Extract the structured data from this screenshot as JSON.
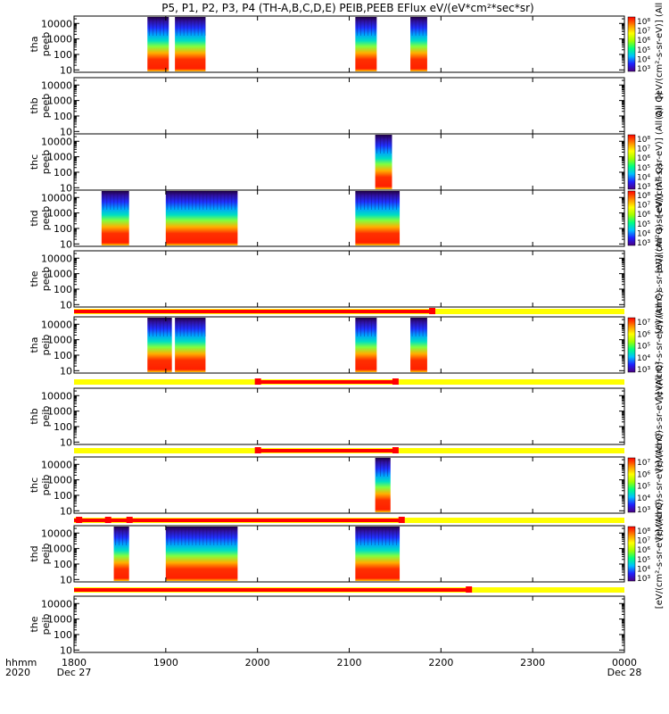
{
  "chart_data": {
    "type": "heatmap",
    "title": "P5, P1, P2, P3, P4 (TH-A,B,C,D,E) PEIB,PEEB EFlux eV/(eV*cm²*sec*sr)",
    "time_axis": {
      "row_label_1": "hhmm",
      "row_label_2": "2020",
      "ticks": [
        {
          "t": 0,
          "label": "1800",
          "sub": "Dec 27"
        },
        {
          "t": 60,
          "label": "1900",
          "sub": ""
        },
        {
          "t": 120,
          "label": "2000",
          "sub": ""
        },
        {
          "t": 180,
          "label": "2100",
          "sub": ""
        },
        {
          "t": 240,
          "label": "2200",
          "sub": ""
        },
        {
          "t": 300,
          "label": "2300",
          "sub": ""
        },
        {
          "t": 360,
          "label": "0000",
          "sub": "Dec 28"
        }
      ],
      "range_minutes": [
        0,
        360
      ]
    },
    "energy_axis": {
      "scale": "log",
      "range_eV": [
        7,
        30000
      ],
      "tick_labels": [
        "10",
        "100",
        "1000",
        "10000"
      ]
    },
    "colors": {
      "scale": [
        "#4b0082",
        "#2020ff",
        "#00c0ff",
        "#00ff80",
        "#a0ff00",
        "#ffff00",
        "#ff9000",
        "#ff0000"
      ],
      "bar_good": "#ffff00",
      "bar_flag": "#ff0000"
    },
    "panels": [
      {
        "id": "tha_peeb",
        "label1": "tha",
        "label2": "peeb",
        "segments": [
          [
            48,
            62
          ],
          [
            66,
            86
          ],
          [
            184,
            198
          ],
          [
            220,
            231
          ]
        ],
        "colorbar": {
          "labels": [
            "10⁸",
            "10⁷",
            "10⁶",
            "10⁵",
            "10⁴",
            "10³"
          ],
          "unit": "[eV/(cm²-s-sr-eV)] (All Q)"
        }
      },
      {
        "id": "thb_peeb",
        "label1": "thb",
        "label2": "peeb",
        "segments": [],
        "colorbar": {
          "labels": [],
          "unit": "(All Q)"
        }
      },
      {
        "id": "thc_peeb",
        "label1": "thc",
        "label2": "peeb",
        "segments": [
          [
            197,
            208
          ]
        ],
        "colorbar": {
          "labels": [
            "10⁸",
            "10⁷",
            "10⁶",
            "10⁵",
            "10⁴",
            "10³"
          ],
          "unit": "[eV/(cm²-s-sr-eV)] (All Q)"
        }
      },
      {
        "id": "thd_peeb",
        "label1": "thd",
        "label2": "peeb",
        "segments": [
          [
            18,
            36
          ],
          [
            60,
            107
          ],
          [
            184,
            213
          ]
        ],
        "colorbar": {
          "labels": [
            "10⁸",
            "10⁷",
            "10⁶",
            "10⁵",
            "10⁴",
            "10³"
          ],
          "unit": "[eV/(cm²-s-sr-eV)] (All Q)"
        }
      },
      {
        "id": "the_peeb",
        "label1": "the",
        "label2": "peeb",
        "segments": [],
        "colorbar": {
          "labels": [],
          "unit": "[eV/(cm²-s-sr-eV)] (All Q)"
        },
        "flag_bar": {
          "red": [
            [
              0,
              234
            ]
          ],
          "dots": [
            234
          ]
        }
      },
      {
        "id": "tha_peib",
        "label1": "tha",
        "label2": "peib",
        "segments": [
          [
            48,
            64
          ],
          [
            66,
            86
          ],
          [
            184,
            198
          ],
          [
            220,
            231
          ]
        ],
        "colorbar": {
          "labels": [
            "10⁷",
            "10⁶",
            "10⁵",
            "10⁴",
            "10³"
          ],
          "unit": "[eV/(cm²-s-sr-eV)] (All Q)"
        },
        "flag_bar": {
          "red": [
            [
              120,
              210
            ]
          ],
          "dots": [
            120,
            210
          ]
        }
      },
      {
        "id": "thb_peib",
        "label1": "thb",
        "label2": "peib",
        "segments": [],
        "colorbar": {
          "labels": [],
          "unit": "[eV/(cm²-s-sr-eV)] (All Q)"
        },
        "flag_bar": {
          "red": [
            [
              120,
              210
            ]
          ],
          "dots": [
            120,
            210
          ]
        }
      },
      {
        "id": "thc_peib",
        "label1": "thc",
        "label2": "peib",
        "segments": [
          [
            197,
            207
          ]
        ],
        "colorbar": {
          "labels": [
            "10⁷",
            "10⁶",
            "10⁵",
            "10⁴",
            "10³"
          ],
          "unit": "[eV/(cm²-s-sr-eV)] (All Q)"
        },
        "flag_bar": {
          "red": [
            [
              0,
              214
            ]
          ],
          "dots": [
            3,
            22,
            36,
            214
          ]
        }
      },
      {
        "id": "thd_peib",
        "label1": "thd",
        "label2": "peib",
        "segments": [
          [
            26,
            36
          ],
          [
            60,
            107
          ],
          [
            184,
            213
          ]
        ],
        "colorbar": {
          "labels": [
            "10⁸",
            "10⁷",
            "10⁶",
            "10⁵",
            "10⁴",
            "10³"
          ],
          "unit": "[eV/(cm²-s-sr-eV)] (All Q)"
        },
        "flag_bar": {
          "red": [
            [
              0,
              258
            ]
          ],
          "dots": [
            258
          ]
        }
      },
      {
        "id": "the_peib",
        "label1": "the",
        "label2": "peib",
        "segments": [],
        "colorbar": {
          "labels": [],
          "unit": ""
        }
      }
    ]
  }
}
